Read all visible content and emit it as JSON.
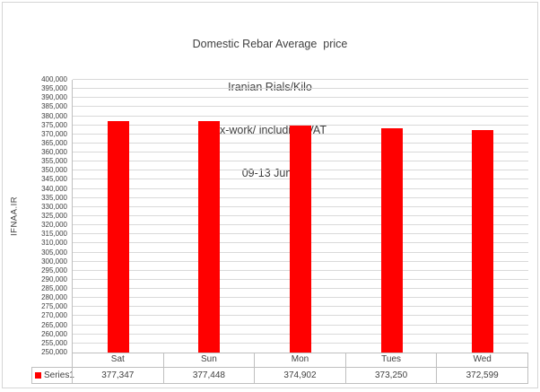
{
  "chart_data": {
    "type": "bar",
    "title_lines": [
      "Domestic Rebar Average  price",
      "Iranian Rials/Kilo",
      "ex-work/ including VAT",
      "09-13 June"
    ],
    "categories": [
      "Sat",
      "Sun",
      "Mon",
      "Tues",
      "Wed"
    ],
    "series": [
      {
        "name": "Series1",
        "values": [
          377347,
          377448,
          374902,
          373250,
          372599
        ]
      }
    ],
    "value_labels": [
      "377,347",
      "377,448",
      "374,902",
      "373,250",
      "372,599"
    ],
    "xlabel": "",
    "ylabel": "IFNAA.IR",
    "ylim": [
      250000,
      400000
    ],
    "ytick_step": 5000,
    "ytick_format": "comma",
    "grid": true,
    "legend_position": "data-table-left",
    "data_table_shown": true
  },
  "colors": {
    "bar": "#ff0000",
    "gridline": "#d9d9d9",
    "axis": "#bfbfbf",
    "text": "#404040",
    "frame": "#d6d6d6"
  }
}
